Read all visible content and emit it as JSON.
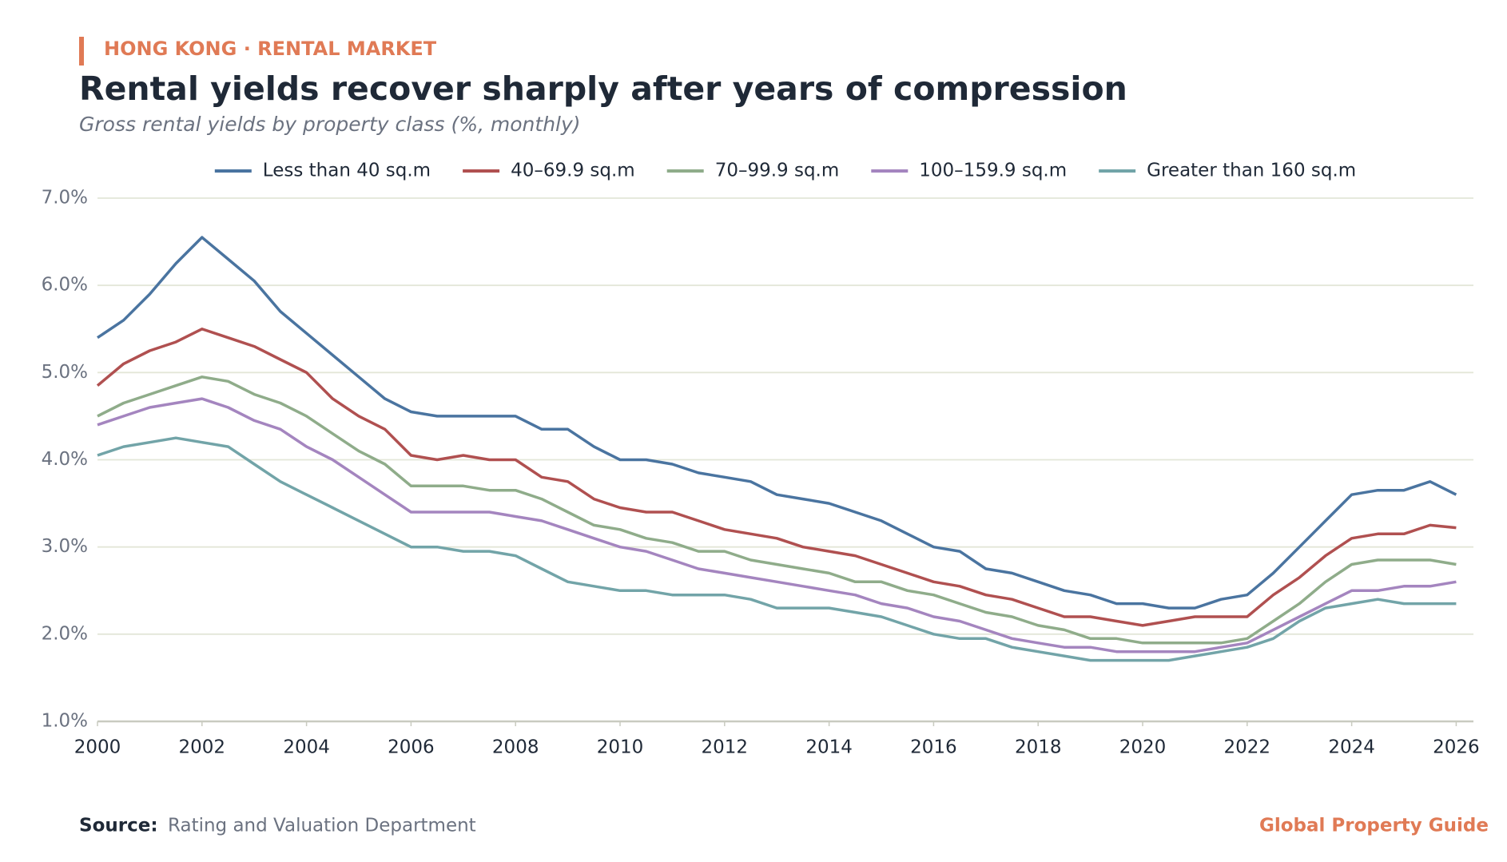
{
  "kicker": "HONG KONG · RENTAL MARKET",
  "source_label": "Source:",
  "source": "Rating and Valuation Department",
  "brand": "Global Property Guide",
  "chart_data": {
    "type": "line",
    "title": "Rental yields recover sharply after years of compression",
    "subtitle": "Gross rental yields by property class (%, monthly)",
    "x": [
      2000,
      2000.5,
      2001,
      2001.5,
      2002,
      2002.5,
      2003,
      2003.5,
      2004,
      2004.5,
      2005,
      2005.5,
      2006,
      2006.5,
      2007,
      2007.5,
      2008,
      2008.5,
      2009,
      2009.5,
      2010,
      2010.5,
      2011,
      2011.5,
      2012,
      2012.5,
      2013,
      2013.5,
      2014,
      2014.5,
      2015,
      2015.5,
      2016,
      2016.5,
      2017,
      2017.5,
      2018,
      2018.5,
      2019,
      2019.5,
      2020,
      2020.5,
      2021,
      2021.5,
      2022,
      2022.5,
      2023,
      2023.5,
      2024,
      2024.5,
      2025,
      2025.5,
      2026
    ],
    "xlim": [
      2000,
      2026.33
    ],
    "xticks": [
      2000,
      2002,
      2004,
      2006,
      2008,
      2010,
      2012,
      2014,
      2016,
      2018,
      2020,
      2022,
      2024,
      2026
    ],
    "ylim": [
      1,
      7
    ],
    "yticks": [
      {
        "value": 1,
        "label": "1.0%"
      },
      {
        "value": 2,
        "label": "2.0%"
      },
      {
        "value": 3,
        "label": "3.0%"
      },
      {
        "value": 4,
        "label": "4.0%"
      },
      {
        "value": 5,
        "label": "5.0%"
      },
      {
        "value": 6,
        "label": "6.0%"
      },
      {
        "value": 7,
        "label": "7.0%"
      }
    ],
    "grid": true,
    "legend": "top",
    "series": [
      {
        "name": "Less than 40 sq.m",
        "color": "#4a74a0",
        "values": [
          5.4,
          5.6,
          5.9,
          6.25,
          6.55,
          6.3,
          6.05,
          5.7,
          5.45,
          5.2,
          4.95,
          4.7,
          4.55,
          4.5,
          4.5,
          4.5,
          4.5,
          4.35,
          4.35,
          4.15,
          4.0,
          4.0,
          3.95,
          3.85,
          3.8,
          3.75,
          3.6,
          3.55,
          3.5,
          3.4,
          3.3,
          3.15,
          3.0,
          2.95,
          2.75,
          2.7,
          2.6,
          2.5,
          2.45,
          2.35,
          2.35,
          2.3,
          2.3,
          2.4,
          2.45,
          2.7,
          3.0,
          3.3,
          3.6,
          3.65,
          3.65,
          3.75,
          3.6
        ]
      },
      {
        "name": "40–69.9 sq.m",
        "color": "#b05050",
        "values": [
          4.85,
          5.1,
          5.25,
          5.35,
          5.5,
          5.4,
          5.3,
          5.15,
          5.0,
          4.7,
          4.5,
          4.35,
          4.05,
          4.0,
          4.05,
          4.0,
          4.0,
          3.8,
          3.75,
          3.55,
          3.45,
          3.4,
          3.4,
          3.3,
          3.2,
          3.15,
          3.1,
          3.0,
          2.95,
          2.9,
          2.8,
          2.7,
          2.6,
          2.55,
          2.45,
          2.4,
          2.3,
          2.2,
          2.2,
          2.15,
          2.1,
          2.15,
          2.2,
          2.2,
          2.2,
          2.45,
          2.65,
          2.9,
          3.1,
          3.15,
          3.15,
          3.25,
          3.22
        ]
      },
      {
        "name": "70–99.9 sq.m",
        "color": "#8fac8a",
        "values": [
          4.5,
          4.65,
          4.75,
          4.85,
          4.95,
          4.9,
          4.75,
          4.65,
          4.5,
          4.3,
          4.1,
          3.95,
          3.7,
          3.7,
          3.7,
          3.65,
          3.65,
          3.55,
          3.4,
          3.25,
          3.2,
          3.1,
          3.05,
          2.95,
          2.95,
          2.85,
          2.8,
          2.75,
          2.7,
          2.6,
          2.6,
          2.5,
          2.45,
          2.35,
          2.25,
          2.2,
          2.1,
          2.05,
          1.95,
          1.95,
          1.9,
          1.9,
          1.9,
          1.9,
          1.95,
          2.15,
          2.35,
          2.6,
          2.8,
          2.85,
          2.85,
          2.85,
          2.8
        ]
      },
      {
        "name": "100–159.9 sq.m",
        "color": "#a485bf",
        "values": [
          4.4,
          4.5,
          4.6,
          4.65,
          4.7,
          4.6,
          4.45,
          4.35,
          4.15,
          4.0,
          3.8,
          3.6,
          3.4,
          3.4,
          3.4,
          3.4,
          3.35,
          3.3,
          3.2,
          3.1,
          3.0,
          2.95,
          2.85,
          2.75,
          2.7,
          2.65,
          2.6,
          2.55,
          2.5,
          2.45,
          2.35,
          2.3,
          2.2,
          2.15,
          2.05,
          1.95,
          1.9,
          1.85,
          1.85,
          1.8,
          1.8,
          1.8,
          1.8,
          1.85,
          1.9,
          2.05,
          2.2,
          2.35,
          2.5,
          2.5,
          2.55,
          2.55,
          2.6
        ]
      },
      {
        "name": "Greater than 160 sq.m",
        "color": "#72a4a8",
        "values": [
          4.05,
          4.15,
          4.2,
          4.25,
          4.2,
          4.15,
          3.95,
          3.75,
          3.6,
          3.45,
          3.3,
          3.15,
          3.0,
          3.0,
          2.95,
          2.95,
          2.9,
          2.75,
          2.6,
          2.55,
          2.5,
          2.5,
          2.45,
          2.45,
          2.45,
          2.4,
          2.3,
          2.3,
          2.3,
          2.25,
          2.2,
          2.1,
          2.0,
          1.95,
          1.95,
          1.85,
          1.8,
          1.75,
          1.7,
          1.7,
          1.7,
          1.7,
          1.75,
          1.8,
          1.85,
          1.95,
          2.15,
          2.3,
          2.35,
          2.4,
          2.35,
          2.35,
          2.35
        ]
      }
    ]
  }
}
